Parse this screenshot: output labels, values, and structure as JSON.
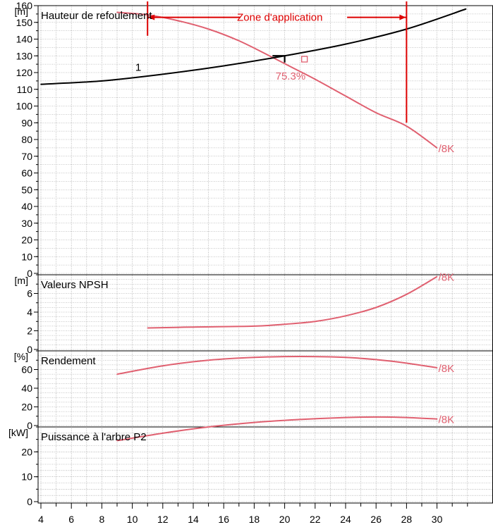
{
  "colors": {
    "pump": "#e06070",
    "system": "#000000",
    "annotation": "#dd0000",
    "grid": "#909090"
  },
  "chart_data": [
    {
      "type": "line",
      "title": "Hauteur de refoulement",
      "ylabel": "[m]",
      "ylim": [
        0,
        160
      ],
      "xlim": [
        4,
        32
      ],
      "yticks": [
        0,
        10,
        20,
        30,
        40,
        50,
        60,
        70,
        80,
        90,
        100,
        110,
        120,
        130,
        140,
        150,
        160
      ],
      "grid": true,
      "series": [
        {
          "name": "/8K",
          "x": [
            9,
            11,
            13,
            15,
            17,
            19,
            20.5,
            22,
            24,
            26,
            28,
            30
          ],
          "values": [
            156,
            154.5,
            151,
            146,
            139,
            130,
            123,
            116,
            106,
            96,
            88,
            75
          ]
        },
        {
          "name": "1",
          "x": [
            4,
            8,
            12,
            16,
            20,
            24,
            28,
            31.9
          ],
          "values": [
            113,
            115,
            119,
            124,
            130,
            137,
            146,
            158
          ]
        }
      ],
      "operating_point": {
        "x": 21.3,
        "y": 128,
        "label": "75.3%"
      },
      "application_zone": {
        "label": "Zone d'application",
        "x_start": 11,
        "x_end": 28
      }
    },
    {
      "type": "line",
      "title": "Valeurs NPSH",
      "ylabel": "[m]",
      "ylim": [
        0,
        8
      ],
      "yticks": [
        0,
        2,
        4,
        6
      ],
      "grid": true,
      "series": [
        {
          "name": "/8K",
          "x": [
            11,
            14,
            18,
            20,
            22,
            24,
            26,
            28,
            30
          ],
          "values": [
            2.3,
            2.4,
            2.5,
            2.7,
            3.0,
            3.6,
            4.5,
            5.9,
            7.8
          ]
        }
      ]
    },
    {
      "type": "line",
      "title": "Rendement",
      "ylabel": "[%]",
      "ylim": [
        0,
        80
      ],
      "yticks": [
        0,
        20,
        40,
        60
      ],
      "grid": true,
      "series": [
        {
          "name": "/8K",
          "x": [
            9,
            12,
            15,
            18,
            21,
            24,
            27,
            30
          ],
          "values": [
            55,
            64,
            70,
            73,
            74,
            73,
            69,
            62
          ]
        }
      ]
    },
    {
      "type": "line",
      "title": "Puissance à l'arbre P2",
      "ylabel": "[kW]",
      "ylim": [
        0,
        30
      ],
      "yticks": [
        0,
        10,
        20
      ],
      "grid": true,
      "series": [
        {
          "name": "/8K",
          "x": [
            9,
            12,
            15,
            18,
            21,
            24,
            26,
            28,
            30
          ],
          "values": [
            24.5,
            27.5,
            30,
            31.8,
            33,
            33.8,
            34,
            33.8,
            33.2
          ]
        }
      ]
    }
  ],
  "xaxis": {
    "xlim": [
      4,
      32
    ],
    "ticks": [
      4,
      6,
      8,
      10,
      12,
      14,
      16,
      18,
      20,
      22,
      24,
      26,
      28,
      30
    ]
  }
}
